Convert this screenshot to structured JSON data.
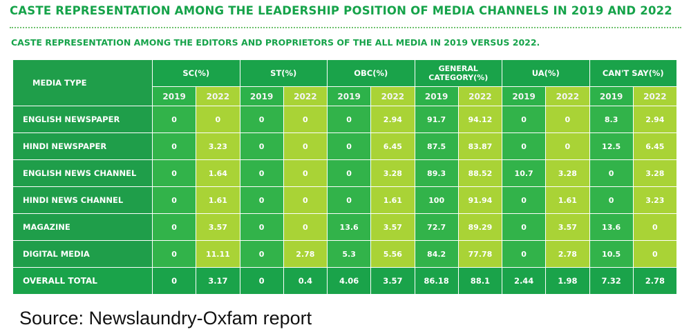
{
  "title": "CASTE REPRESENTATION AMONG THE LEADERSHIP POSITION OF MEDIA CHANNELS IN 2019 AND 2022",
  "subtitle": "CASTE REPRESENTATION AMONG THE EDITORS AND PROPRIETORS OF THE ALL MEDIA IN 2019 VERSUS 2022.",
  "source": "Source: Newslaundry-Oxfam report",
  "colors": {
    "title_green": "#16a34a",
    "header_green": "#1aa34a",
    "cell_green": "#32b34a",
    "cell_lime": "#a9d336"
  },
  "chart_data": {
    "type": "table",
    "row_header": "MEDIA TYPE",
    "groups": [
      {
        "label": "SC(%)",
        "years": [
          "2019",
          "2022"
        ]
      },
      {
        "label": "ST(%)",
        "years": [
          "2019",
          "2022"
        ]
      },
      {
        "label": "OBC(%)",
        "years": [
          "2019",
          "2022"
        ]
      },
      {
        "label": "GENERAL CATEGORY(%)",
        "label_lines": [
          "GENERAL",
          "CATEGORY(%)"
        ],
        "years": [
          "2019",
          "2022"
        ]
      },
      {
        "label": "UA(%)",
        "years": [
          "2019",
          "2022"
        ]
      },
      {
        "label": "CAN'T SAY(%)",
        "years": [
          "2019",
          "2022"
        ]
      }
    ],
    "rows": [
      {
        "label": "ENGLISH NEWSPAPER",
        "values": [
          "0",
          "0",
          "0",
          "0",
          "0",
          "2.94",
          "91.7",
          "94.12",
          "0",
          "0",
          "8.3",
          "2.94"
        ]
      },
      {
        "label": "HINDI NEWSPAPER",
        "values": [
          "0",
          "3.23",
          "0",
          "0",
          "0",
          "6.45",
          "87.5",
          "83.87",
          "0",
          "0",
          "12.5",
          "6.45"
        ]
      },
      {
        "label": "ENGLISH NEWS CHANNEL",
        "values": [
          "0",
          "1.64",
          "0",
          "0",
          "0",
          "3.28",
          "89.3",
          "88.52",
          "10.7",
          "3.28",
          "0",
          "3.28"
        ]
      },
      {
        "label": "HINDI NEWS CHANNEL",
        "values": [
          "0",
          "1.61",
          "0",
          "0",
          "0",
          "1.61",
          "100",
          "91.94",
          "0",
          "1.61",
          "0",
          "3.23"
        ]
      },
      {
        "label": "MAGAZINE",
        "values": [
          "0",
          "3.57",
          "0",
          "0",
          "13.6",
          "3.57",
          "72.7",
          "89.29",
          "0",
          "3.57",
          "13.6",
          "0"
        ]
      },
      {
        "label": "DIGITAL MEDIA",
        "values": [
          "0",
          "11.11",
          "0",
          "2.78",
          "5.3",
          "5.56",
          "84.2",
          "77.78",
          "0",
          "2.78",
          "10.5",
          "0"
        ]
      }
    ],
    "total": {
      "label": "OVERALL TOTAL",
      "values": [
        "0",
        "3.17",
        "0",
        "0.4",
        "4.06",
        "3.57",
        "86.18",
        "88.1",
        "2.44",
        "1.98",
        "7.32",
        "2.78"
      ]
    }
  }
}
